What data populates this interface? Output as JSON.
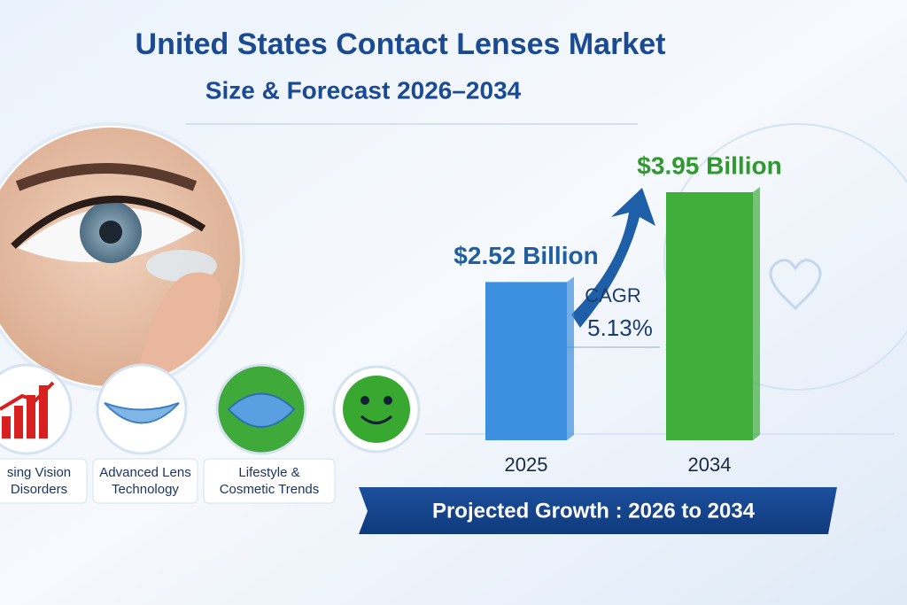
{
  "chart_data": {
    "type": "bar",
    "title": "United States Contact Lenses Market",
    "subtitle": "Size & Forecast 2026–2034",
    "categories": [
      "2025",
      "2034"
    ],
    "values": [
      2.52,
      3.95
    ],
    "value_labels": [
      "$2.52 Billion",
      "$3.95 Billion"
    ],
    "colors": [
      "#3d8fe0",
      "#3fae3a"
    ],
    "label_colors": [
      "#1f5f9e",
      "#2e9a2e"
    ],
    "annotations": [
      "CAGR",
      "5.13%"
    ],
    "banner": "Projected Growth : 2026 to 2034",
    "features": [
      {
        "lines": [
          "sing Vision",
          "Disorders"
        ]
      },
      {
        "lines": [
          "Advanced Lens",
          "Technology"
        ]
      },
      {
        "lines": [
          "Lifestyle &",
          "Cosmetic Trends"
        ]
      }
    ]
  }
}
